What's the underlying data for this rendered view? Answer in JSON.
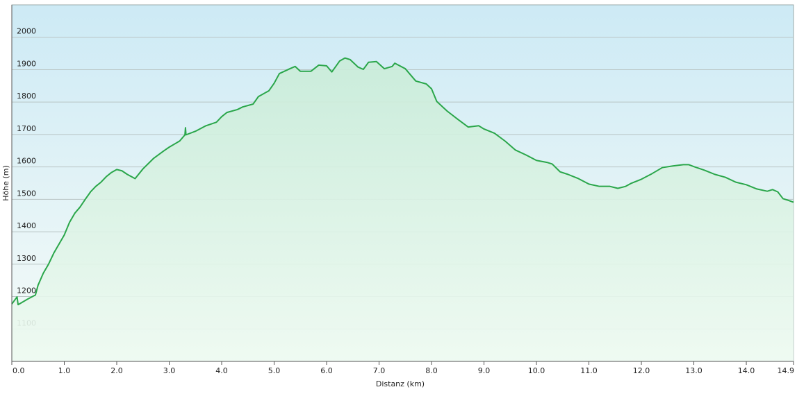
{
  "chart_data": {
    "type": "area",
    "ylabel": "Höhe (m)",
    "xlabel": "Distanz  (km)",
    "color": "#2aa64a",
    "grid": true,
    "xlim": [
      0,
      14.9
    ],
    "ylim": [
      1000,
      2100
    ],
    "xticks": [
      {
        "value": 0,
        "label": "0.0"
      },
      {
        "value": 1,
        "label": "1.0"
      },
      {
        "value": 2,
        "label": "2.0"
      },
      {
        "value": 3,
        "label": "3.0"
      },
      {
        "value": 4,
        "label": "4.0"
      },
      {
        "value": 5,
        "label": "5.0"
      },
      {
        "value": 6,
        "label": "6.0"
      },
      {
        "value": 7,
        "label": "7.0"
      },
      {
        "value": 8,
        "label": "8.0"
      },
      {
        "value": 9,
        "label": "9.0"
      },
      {
        "value": 10,
        "label": "10.0"
      },
      {
        "value": 11,
        "label": "11.0"
      },
      {
        "value": 12,
        "label": "12.0"
      },
      {
        "value": 13,
        "label": "13.0"
      },
      {
        "value": 14,
        "label": "14.0"
      },
      14.9
    ],
    "yticks": [
      1100,
      1200,
      1300,
      1400,
      1500,
      1600,
      1700,
      1800,
      1900,
      2000
    ],
    "x": [
      0,
      0.1,
      0.12,
      0.3,
      0.45,
      0.5,
      0.6,
      0.7,
      0.8,
      1.0,
      1.1,
      1.2,
      1.3,
      1.4,
      1.5,
      1.6,
      1.7,
      1.8,
      1.9,
      2.0,
      2.1,
      2.2,
      2.35,
      2.5,
      2.7,
      2.9,
      3.0,
      3.2,
      3.3,
      3.31,
      3.32,
      3.5,
      3.7,
      3.9,
      4.0,
      4.1,
      4.3,
      4.4,
      4.6,
      4.7,
      4.9,
      5.0,
      5.1,
      5.3,
      5.4,
      5.5,
      5.7,
      5.85,
      6.0,
      6.1,
      6.25,
      6.35,
      6.45,
      6.6,
      6.7,
      6.8,
      6.95,
      7.1,
      7.25,
      7.3,
      7.5,
      7.7,
      7.9,
      8.0,
      8.1,
      8.3,
      8.5,
      8.7,
      8.9,
      9.0,
      9.2,
      9.4,
      9.6,
      9.8,
      10.0,
      10.2,
      10.3,
      10.45,
      10.6,
      10.8,
      11.0,
      11.2,
      11.4,
      11.55,
      11.7,
      11.8,
      12.0,
      12.2,
      12.4,
      12.6,
      12.8,
      12.9,
      13.0,
      13.2,
      13.4,
      13.6,
      13.8,
      14.0,
      14.2,
      14.4,
      14.5,
      14.6,
      14.7,
      14.8,
      14.9
    ],
    "values": [
      1177,
      1199,
      1175,
      1192,
      1205,
      1235,
      1272,
      1300,
      1334,
      1390,
      1429,
      1457,
      1476,
      1500,
      1523,
      1540,
      1553,
      1570,
      1583,
      1592,
      1588,
      1577,
      1564,
      1594,
      1626,
      1650,
      1661,
      1680,
      1699,
      1721,
      1699,
      1710,
      1727,
      1738,
      1755,
      1768,
      1777,
      1785,
      1794,
      1817,
      1835,
      1858,
      1888,
      1903,
      1910,
      1895,
      1895,
      1914,
      1912,
      1893,
      1927,
      1936,
      1931,
      1908,
      1901,
      1923,
      1925,
      1903,
      1910,
      1920,
      1903,
      1865,
      1856,
      1841,
      1802,
      1772,
      1747,
      1723,
      1727,
      1717,
      1704,
      1680,
      1652,
      1637,
      1620,
      1614,
      1609,
      1585,
      1577,
      1564,
      1547,
      1540,
      1540,
      1534,
      1540,
      1549,
      1562,
      1579,
      1598,
      1603,
      1607,
      1607,
      1601,
      1590,
      1577,
      1568,
      1553,
      1545,
      1532,
      1525,
      1530,
      1523,
      1502,
      1497,
      1491
    ]
  }
}
